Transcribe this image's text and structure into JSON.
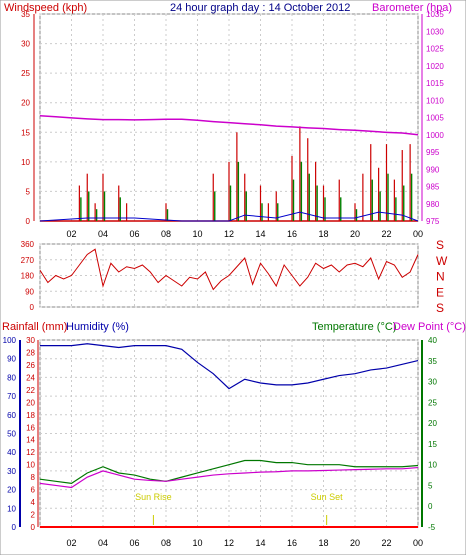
{
  "title": "24 hour graph day : 14 October 2012",
  "colors": {
    "wind_speed": "#008000",
    "wind_gust": "#cc0000",
    "wind_avg": "#0000cc",
    "barometer": "#cc00cc",
    "wind_dir": "#cc0000",
    "rain": "#ff0000",
    "humidity": "#0000aa",
    "temperature": "#007700",
    "dew_point": "#cc00cc",
    "sun": "#cccc00",
    "grid": "#cccccc",
    "frame": "#000000"
  },
  "chart_data": [
    {
      "type": "line",
      "name": "wind-barometer",
      "ylabel": "Windspeed (kph)",
      "y2label": "Barometer (hpa)",
      "ylim": [
        0,
        35
      ],
      "y2lim": [
        975,
        1035
      ],
      "yticks": [
        0,
        5,
        10,
        15,
        20,
        25,
        30,
        35
      ],
      "y2ticks": [
        975,
        980,
        985,
        990,
        995,
        1000,
        1005,
        1010,
        1015,
        1020,
        1025,
        1030,
        1035
      ],
      "x_hours": [
        0,
        2,
        4,
        6,
        8,
        10,
        12,
        14,
        16,
        18,
        20,
        22,
        24
      ],
      "xtick_labels": [
        "02",
        "04",
        "06",
        "08",
        "10",
        "12",
        "14",
        "16",
        "18",
        "20",
        "22",
        "00"
      ],
      "barometer": {
        "hours": [
          0,
          1,
          2,
          3,
          4,
          5,
          6,
          7,
          8,
          9,
          10,
          11,
          12,
          13,
          14,
          15,
          16,
          17,
          18,
          19,
          20,
          21,
          22,
          23,
          24
        ],
        "values": [
          1005.5,
          1005.2,
          1004.9,
          1004.6,
          1004.4,
          1004.4,
          1004.3,
          1004.4,
          1004.5,
          1004.5,
          1004.2,
          1003.8,
          1003.5,
          1003.2,
          1002.9,
          1002.5,
          1002.3,
          1002.0,
          1001.8,
          1001.5,
          1001.3,
          1001.0,
          1000.7,
          1000.5,
          1000.0
        ]
      },
      "wind_gust": {
        "hours": [
          2.5,
          3.0,
          3.5,
          4.0,
          5.0,
          5.5,
          8.0,
          11.0,
          12.0,
          12.5,
          13.0,
          14.0,
          14.5,
          15.0,
          16.0,
          16.5,
          17.0,
          17.5,
          18.0,
          19.0,
          20.0,
          20.5,
          21.0,
          21.5,
          22.0,
          22.5,
          23.0,
          23.5
        ],
        "values": [
          6,
          8,
          3,
          8,
          6,
          3,
          3,
          8,
          10,
          15,
          8,
          6,
          3,
          5,
          11,
          16,
          14,
          10,
          6,
          7,
          3,
          8,
          13,
          9,
          13,
          7,
          12,
          13
        ]
      },
      "wind_speed": {
        "hours": [
          2.5,
          3.0,
          3.5,
          4.0,
          5.0,
          8.0,
          11.0,
          12.0,
          12.5,
          13.0,
          14.0,
          15.0,
          16.0,
          16.5,
          17.0,
          17.5,
          18.0,
          19.0,
          20.0,
          21.0,
          21.5,
          22.0,
          22.5,
          23.0,
          23.5
        ],
        "values": [
          4,
          5,
          2,
          5,
          4,
          2,
          5,
          6,
          10,
          5,
          3,
          3,
          7,
          10,
          8,
          6,
          4,
          4,
          2,
          7,
          5,
          8,
          4,
          6,
          8
        ]
      },
      "wind_avg": {
        "hours": [
          0,
          3,
          6,
          9,
          12,
          13,
          15,
          16.5,
          18,
          20,
          21.5,
          23,
          24
        ],
        "values": [
          0,
          0.5,
          0.5,
          0,
          0,
          1,
          0.5,
          1.5,
          0.5,
          0.5,
          1.5,
          1,
          0
        ]
      }
    },
    {
      "type": "line",
      "name": "wind-direction",
      "ylim": [
        0,
        360
      ],
      "yticks": [
        0,
        90,
        180,
        270,
        360
      ],
      "compass_labels": [
        "S",
        "E",
        "N",
        "W",
        "S"
      ],
      "hours": [
        0,
        0.5,
        1,
        1.5,
        2,
        2.5,
        3,
        3.5,
        4,
        4.5,
        5,
        5.5,
        6,
        6.5,
        7,
        7.5,
        8,
        8.5,
        9,
        9.5,
        10,
        10.5,
        11,
        11.5,
        12,
        12.5,
        13,
        13.5,
        14,
        14.5,
        15,
        15.5,
        16,
        16.5,
        17,
        17.5,
        18,
        18.5,
        19,
        19.5,
        20,
        20.5,
        21,
        21.5,
        22,
        22.5,
        23,
        23.5,
        24
      ],
      "values": [
        210,
        140,
        180,
        160,
        180,
        240,
        300,
        330,
        120,
        250,
        200,
        230,
        220,
        240,
        200,
        140,
        180,
        150,
        120,
        170,
        160,
        200,
        100,
        150,
        180,
        230,
        280,
        130,
        250,
        190,
        120,
        240,
        180,
        120,
        170,
        250,
        220,
        240,
        200,
        240,
        250,
        230,
        280,
        160,
        260,
        240,
        170,
        200,
        300
      ]
    },
    {
      "type": "line",
      "name": "rain-humidity-temp",
      "ylabel_rain": "Rainfall (mm)",
      "ylabel_hum": "Humidity (%)",
      "y2label_temp": "Temperature (°C)",
      "y2label_dew": "Dew Point (°C)",
      "rain_ticks": [
        0,
        2,
        4,
        6,
        8,
        10,
        12,
        14,
        16,
        18,
        20,
        22,
        24,
        26,
        28,
        30
      ],
      "hum_ticks": [
        0,
        10,
        20,
        30,
        40,
        50,
        60,
        70,
        80,
        90,
        100
      ],
      "temp_ticks": [
        -5,
        0,
        5,
        10,
        15,
        20,
        25,
        30,
        35,
        40
      ],
      "humidity": {
        "hours": [
          0,
          1,
          2,
          3,
          4,
          5,
          6,
          7,
          8,
          9,
          10,
          11,
          12,
          13,
          14,
          15,
          16,
          17,
          18,
          19,
          20,
          21,
          22,
          23,
          24
        ],
        "values": [
          97,
          97,
          97,
          98,
          97,
          96,
          97,
          97,
          97,
          95,
          88,
          82,
          74,
          79,
          77,
          76,
          76,
          77,
          79,
          81,
          82,
          84,
          85,
          87,
          89
        ]
      },
      "temperature": {
        "hours": [
          0,
          1,
          2,
          3,
          4,
          5,
          6,
          7,
          8,
          9,
          10,
          11,
          12,
          13,
          14,
          15,
          16,
          17,
          18,
          19,
          20,
          21,
          22,
          23,
          24
        ],
        "values": [
          6.5,
          6,
          5.5,
          8,
          9.5,
          8,
          7.5,
          6.5,
          6,
          7,
          8,
          9,
          10,
          11,
          11,
          10.5,
          10.5,
          10,
          10,
          10,
          9.5,
          9.5,
          9.5,
          9.5,
          9.8
        ]
      },
      "dew_point": {
        "hours": [
          0,
          1,
          2,
          3,
          4,
          5,
          6,
          7,
          8,
          9,
          10,
          11,
          12,
          13,
          14,
          15,
          16,
          17,
          18,
          19,
          20,
          21,
          22,
          23,
          24
        ],
        "values": [
          5.5,
          5,
          4.5,
          7,
          8.5,
          7.5,
          6.5,
          6.2,
          6,
          6.5,
          7,
          7.5,
          7.8,
          8,
          8.2,
          8.3,
          8.5,
          8.5,
          8.6,
          8.7,
          8.8,
          8.9,
          9,
          9,
          9.3
        ]
      },
      "rain_total": 0,
      "sun_rise_hour": 7.2,
      "sun_set_hour": 18.2,
      "sun_rise_label": "Sun Rise",
      "sun_set_label": "Sun Set"
    }
  ]
}
